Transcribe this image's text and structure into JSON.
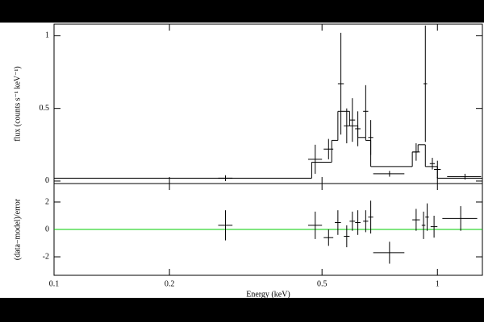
{
  "chart_data": [
    {
      "type": "errorbar",
      "ylabel": "flux (counts s⁻¹ keV⁻¹)",
      "log_x": true,
      "xlim": [
        0.1,
        1.31
      ],
      "ylim": [
        -0.017,
        1.08
      ],
      "xticks": [
        0.1,
        0.2,
        0.5,
        1
      ],
      "yticks": [
        0,
        0.5,
        1
      ],
      "color": "#000000",
      "x": [
        0.28,
        0.48,
        0.52,
        0.56,
        0.58,
        0.6,
        0.62,
        0.65,
        0.67,
        0.75,
        0.88,
        0.93,
        0.97,
        1.0,
        1.18
      ],
      "xerr": [
        0.012,
        0.02,
        0.015,
        0.01,
        0.01,
        0.01,
        0.01,
        0.01,
        0.01,
        0.07,
        0.02,
        0.01,
        0.015,
        0.02,
        0.12
      ],
      "values": [
        0.02,
        0.15,
        0.22,
        0.67,
        0.38,
        0.42,
        0.36,
        0.48,
        0.3,
        0.05,
        0.2,
        0.67,
        0.12,
        0.08,
        0.03
      ],
      "yerr": [
        0.02,
        0.1,
        0.07,
        0.35,
        0.12,
        0.15,
        0.12,
        0.18,
        0.12,
        0.02,
        0.06,
        0.4,
        0.04,
        0.06,
        0.02
      ],
      "model": {
        "edges": [
          0.1,
          0.47,
          0.53,
          0.55,
          0.59,
          0.62,
          0.65,
          0.67,
          0.86,
          0.89,
          0.93,
          1.0,
          1.31
        ],
        "values": [
          0.02,
          0.13,
          0.28,
          0.48,
          0.38,
          0.3,
          0.28,
          0.1,
          0.2,
          0.25,
          0.1,
          0.02
        ]
      }
    },
    {
      "type": "errorbar",
      "ylabel": "(data−model)/error",
      "xlabel": "Energy (keV)",
      "log_x": true,
      "xlim": [
        0.1,
        1.31
      ],
      "ylim": [
        -3.35,
        3.35
      ],
      "xticks": [
        0.1,
        0.2,
        0.5,
        1
      ],
      "yticks": [
        -2,
        0,
        2
      ],
      "color": "#000000",
      "zero_line_color": "#00cc00",
      "x": [
        0.28,
        0.48,
        0.52,
        0.55,
        0.58,
        0.6,
        0.62,
        0.65,
        0.67,
        0.75,
        0.88,
        0.92,
        0.94,
        0.98,
        1.15
      ],
      "xerr": [
        0.012,
        0.02,
        0.015,
        0.01,
        0.01,
        0.01,
        0.01,
        0.01,
        0.01,
        0.07,
        0.02,
        0.01,
        0.01,
        0.02,
        0.12
      ],
      "values": [
        0.3,
        0.3,
        -0.6,
        0.5,
        -0.5,
        0.6,
        0.5,
        0.6,
        0.9,
        -1.7,
        0.7,
        0.3,
        0.9,
        0.2,
        0.8
      ],
      "yerr": [
        1.1,
        1.0,
        0.6,
        0.9,
        0.8,
        0.7,
        0.9,
        0.8,
        1.2,
        0.8,
        0.8,
        1.0,
        1.0,
        0.8,
        0.9
      ]
    }
  ]
}
